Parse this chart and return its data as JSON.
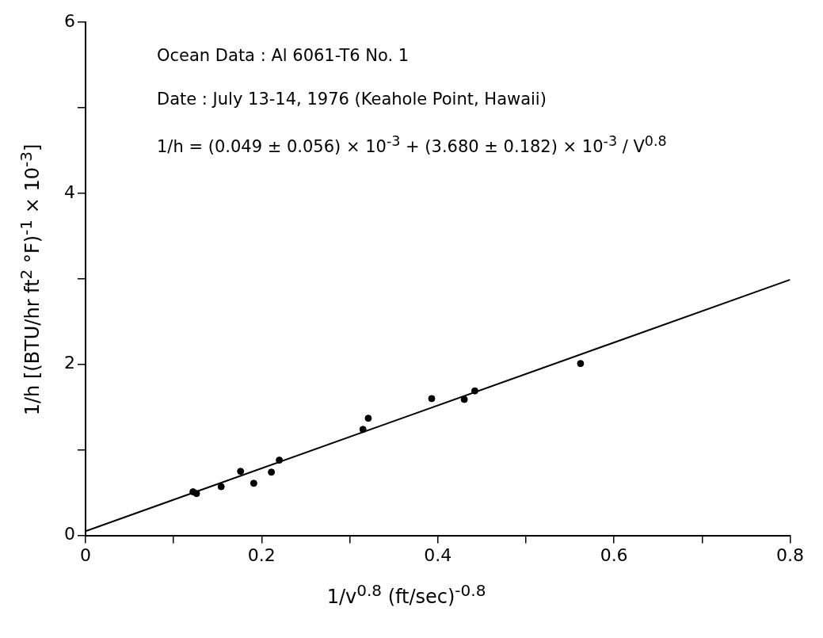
{
  "chart_data": {
    "type": "scatter",
    "xlabel": "1/v$^{0.8}$  (ft/sec)$^{-0.8}$",
    "ylabel": "1/h [(BTU/hr ft$^{2}$ °F)$^{-1}$ × 10$^{-3}$]",
    "annotations": [
      "Ocean Data : Al 6061-T6  No. 1",
      "Date : July 13-14, 1976  (Keahole Point, Hawaii)",
      "1/h = (0.049 ± 0.056) × 10$^{-3}$ + (3.680 ± 0.182) × 10$^{-3}$ / V$^{0.8}$"
    ],
    "x": [
      0.122,
      0.126,
      0.154,
      0.176,
      0.191,
      0.211,
      0.22,
      0.315,
      0.321,
      0.393,
      0.43,
      0.442,
      0.562
    ],
    "series": [
      {
        "color": "#000000",
        "values": [
          0.51,
          0.49,
          0.57,
          0.75,
          0.61,
          0.74,
          0.88,
          1.24,
          1.37,
          1.6,
          1.59,
          1.69,
          2.01
        ]
      },
      {
        "type": "line",
        "color": "#000000",
        "x": [
          0,
          0.8
        ],
        "values": [
          0.05,
          2.99
        ],
        "marker": "none"
      }
    ],
    "marker": "circle",
    "grid": false,
    "legend": false,
    "xlim": [
      0,
      0.8
    ],
    "xticks": [
      0,
      {
        "value": 0.1,
        "label": null
      },
      0.2,
      {
        "value": 0.3,
        "label": null
      },
      0.4,
      {
        "value": 0.5,
        "label": null
      },
      0.6,
      {
        "value": 0.7,
        "label": null
      },
      0.8
    ],
    "ylim": [
      0,
      6
    ],
    "yticks": [
      0,
      {
        "value": 1,
        "label": null
      },
      2,
      {
        "value": 3,
        "label": null
      },
      4,
      {
        "value": 5,
        "label": null
      },
      6
    ]
  }
}
